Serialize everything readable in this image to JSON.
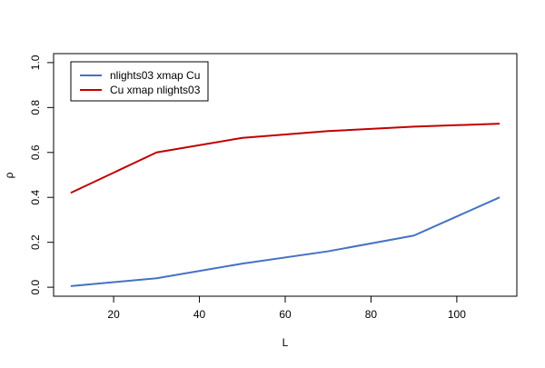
{
  "chart_data": {
    "type": "line",
    "title": "",
    "xlabel": "L",
    "ylabel": "ρ",
    "xlim": [
      6,
      114
    ],
    "ylim": [
      -0.04,
      1.04
    ],
    "x_ticks": [
      20,
      40,
      60,
      80,
      100
    ],
    "y_ticks": [
      0.0,
      0.2,
      0.4,
      0.6,
      0.8,
      1.0
    ],
    "y_tick_labels": [
      "0.0",
      "0.2",
      "0.4",
      "0.6",
      "0.8",
      "1.0"
    ],
    "grid": false,
    "legend_position": "top-left",
    "x": [
      10,
      30,
      50,
      70,
      90,
      110
    ],
    "series": [
      {
        "name": "nlights03 xmap Cu",
        "color": "#4472c4",
        "values": [
          0.005,
          0.04,
          0.105,
          0.16,
          0.23,
          0.4
        ]
      },
      {
        "name": "Cu xmap nlights03",
        "color": "#c00000",
        "values": [
          0.42,
          0.6,
          0.665,
          0.695,
          0.715,
          0.728
        ]
      }
    ]
  }
}
